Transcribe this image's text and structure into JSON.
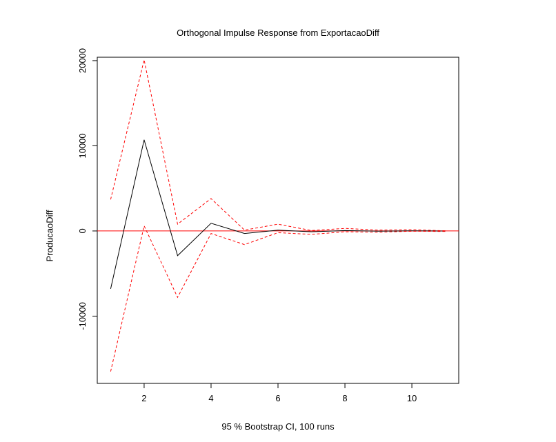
{
  "chart_data": {
    "type": "line",
    "title": "Orthogonal Impulse Response from ExportacaoDiff",
    "xlabel": "95 % Bootstrap CI,  100 runs",
    "ylabel": "ProducaoDiff",
    "xlim": [
      0.6,
      11.4
    ],
    "ylim": [
      -17900,
      20400
    ],
    "x": [
      1,
      2,
      3,
      4,
      5,
      6,
      7,
      8,
      9,
      10,
      11
    ],
    "x_ticks": [
      2,
      4,
      6,
      8,
      10
    ],
    "y_ticks": [
      -10000,
      0,
      10000,
      20000
    ],
    "zero_line": {
      "value": 0,
      "color": "#ff0000"
    },
    "series": [
      {
        "name": "",
        "color": "#000000",
        "dashed": false,
        "values": [
          -6800,
          10700,
          -2900,
          900,
          -300,
          100,
          -100,
          50,
          -30,
          20,
          -10
        ]
      },
      {
        "name": "",
        "color": "#ff0000",
        "dashed": true,
        "values": [
          3700,
          20100,
          800,
          3800,
          100,
          800,
          50,
          300,
          100,
          150,
          20
        ]
      },
      {
        "name": "",
        "color": "#ff0000",
        "dashed": true,
        "values": [
          -16500,
          600,
          -7800,
          -300,
          -1600,
          -200,
          -400,
          -100,
          -150,
          -30,
          -60
        ]
      }
    ]
  }
}
